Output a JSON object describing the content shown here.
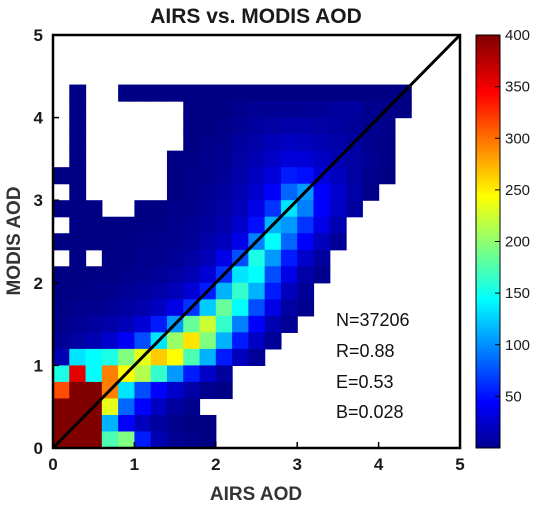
{
  "chart_data": {
    "type": "heatmap",
    "title": "AIRS vs. MODIS AOD",
    "xlabel": "AIRS AOD",
    "ylabel": "MODIS AOD",
    "xlim": [
      0,
      5
    ],
    "ylim": [
      0,
      5
    ],
    "xticks": [
      "0",
      "1",
      "2",
      "3",
      "4",
      "5"
    ],
    "yticks": [
      "0",
      "1",
      "2",
      "3",
      "4",
      "5"
    ],
    "bin_size": 0.2,
    "colormap": "jet",
    "color_range": [
      0,
      400
    ],
    "colorbar_ticks": [
      "50",
      "100",
      "150",
      "200",
      "250",
      "300",
      "350",
      "400"
    ],
    "one_to_one_line": true,
    "grid": false,
    "stats": [
      "N=37206",
      "R=0.88",
      "E=0.53",
      "B=0.028"
    ],
    "rows_note_y_descending_from_4.4_to_0.0": true,
    "y_rows": [
      4.2,
      4.0,
      3.8,
      3.6,
      3.4,
      3.2,
      3.0,
      2.8,
      2.6,
      2.4,
      2.2,
      2.0,
      1.8,
      1.6,
      1.4,
      1.2,
      1.0,
      0.8,
      0.6,
      0.4,
      0.2,
      0.0
    ],
    "x_columns": [
      0.0,
      0.2,
      0.4,
      0.6,
      0.8,
      1.0,
      1.2,
      1.4,
      1.6,
      1.8,
      2.0,
      2.2,
      2.4,
      2.6,
      2.8,
      3.0,
      3.2,
      3.4,
      3.6,
      3.8,
      4.0,
      4.2
    ],
    "counts": [
      [
        0,
        2,
        0,
        0,
        2,
        2,
        2,
        2,
        2,
        2,
        2,
        2,
        2,
        2,
        2,
        2,
        2,
        2,
        2,
        2,
        2,
        2
      ],
      [
        0,
        2,
        0,
        0,
        0,
        0,
        0,
        0,
        2,
        2,
        2,
        6,
        8,
        8,
        8,
        8,
        10,
        12,
        12,
        6,
        4,
        2
      ],
      [
        0,
        2,
        0,
        0,
        0,
        0,
        0,
        0,
        2,
        2,
        4,
        8,
        12,
        14,
        16,
        16,
        14,
        12,
        10,
        6,
        4,
        0
      ],
      [
        0,
        2,
        0,
        0,
        0,
        0,
        0,
        0,
        2,
        4,
        6,
        12,
        16,
        22,
        26,
        24,
        20,
        16,
        12,
        6,
        3,
        0
      ],
      [
        0,
        2,
        0,
        0,
        0,
        0,
        0,
        2,
        3,
        5,
        8,
        14,
        20,
        28,
        36,
        34,
        26,
        20,
        14,
        8,
        3,
        0
      ],
      [
        2,
        2,
        0,
        0,
        0,
        0,
        0,
        2,
        4,
        6,
        10,
        16,
        26,
        36,
        60,
        55,
        35,
        24,
        14,
        6,
        2,
        0
      ],
      [
        0,
        2,
        0,
        0,
        0,
        0,
        0,
        2,
        5,
        8,
        12,
        20,
        32,
        50,
        90,
        110,
        50,
        30,
        16,
        4,
        0,
        0
      ],
      [
        2,
        2,
        2,
        0,
        0,
        2,
        2,
        4,
        6,
        10,
        14,
        24,
        40,
        70,
        140,
        100,
        50,
        28,
        12,
        0,
        0,
        0
      ],
      [
        0,
        2,
        2,
        2,
        2,
        2,
        3,
        5,
        8,
        12,
        18,
        30,
        55,
        120,
        110,
        70,
        40,
        20,
        0,
        0,
        0,
        0
      ],
      [
        2,
        2,
        2,
        2,
        3,
        4,
        5,
        7,
        10,
        16,
        24,
        40,
        100,
        150,
        90,
        50,
        24,
        10,
        0,
        0,
        0,
        0
      ],
      [
        0,
        2,
        0,
        2,
        3,
        5,
        7,
        9,
        14,
        22,
        40,
        80,
        160,
        110,
        60,
        30,
        12,
        0,
        0,
        0,
        0,
        0
      ],
      [
        2,
        2,
        2,
        3,
        5,
        7,
        10,
        14,
        20,
        34,
        70,
        140,
        150,
        80,
        40,
        16,
        6,
        0,
        0,
        0,
        0,
        0
      ],
      [
        2,
        3,
        4,
        6,
        9,
        12,
        16,
        22,
        34,
        60,
        120,
        170,
        120,
        60,
        24,
        10,
        0,
        0,
        0,
        0,
        0,
        0
      ],
      [
        3,
        5,
        6,
        9,
        13,
        18,
        26,
        40,
        70,
        130,
        190,
        150,
        80,
        40,
        14,
        6,
        0,
        0,
        0,
        0,
        0,
        0
      ],
      [
        4,
        8,
        12,
        16,
        22,
        34,
        60,
        110,
        190,
        230,
        170,
        100,
        50,
        20,
        8,
        0,
        0,
        0,
        0,
        0,
        0,
        0
      ],
      [
        8,
        14,
        20,
        30,
        46,
        80,
        140,
        210,
        260,
        200,
        120,
        60,
        26,
        10,
        0,
        0,
        0,
        0,
        0,
        0,
        0,
        0
      ],
      [
        20,
        140,
        150,
        160,
        200,
        240,
        270,
        250,
        180,
        120,
        60,
        24,
        10,
        0,
        0,
        0,
        0,
        0,
        0,
        0,
        0,
        0
      ],
      [
        160,
        360,
        150,
        300,
        250,
        220,
        170,
        110,
        60,
        28,
        12,
        0,
        0,
        0,
        0,
        0,
        0,
        0,
        0,
        0,
        0,
        0
      ],
      [
        320,
        400,
        400,
        300,
        140,
        80,
        50,
        30,
        16,
        6,
        2,
        0,
        0,
        0,
        0,
        0,
        0,
        0,
        0,
        0,
        0,
        0
      ],
      [
        400,
        400,
        400,
        240,
        90,
        50,
        26,
        12,
        6,
        0,
        0,
        0,
        0,
        0,
        0,
        0,
        0,
        0,
        0,
        0,
        0,
        0
      ],
      [
        400,
        400,
        400,
        120,
        50,
        24,
        12,
        6,
        2,
        2,
        0,
        0,
        0,
        0,
        0,
        0,
        0,
        0,
        0,
        0,
        0,
        0
      ],
      [
        400,
        400,
        400,
        180,
        200,
        60,
        20,
        8,
        4,
        2,
        0,
        0,
        0,
        0,
        0,
        0,
        0,
        0,
        0,
        0,
        0,
        0
      ]
    ]
  }
}
